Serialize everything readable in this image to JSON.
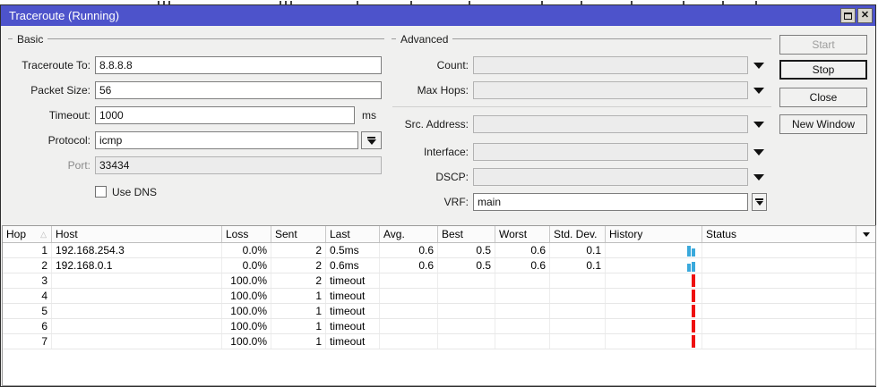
{
  "window": {
    "title": "Traceroute (Running)"
  },
  "basic": {
    "legend": "Basic",
    "traceroute_to": {
      "label": "Traceroute To:",
      "value": "8.8.8.8"
    },
    "packet_size": {
      "label": "Packet Size:",
      "value": "56"
    },
    "timeout": {
      "label": "Timeout:",
      "value": "1000",
      "suffix": "ms"
    },
    "protocol": {
      "label": "Protocol:",
      "value": "icmp"
    },
    "port": {
      "label": "Port:",
      "value": "33434"
    },
    "use_dns": {
      "label": "Use DNS",
      "checked": false
    }
  },
  "advanced": {
    "legend": "Advanced",
    "count": {
      "label": "Count:",
      "value": ""
    },
    "max_hops": {
      "label": "Max Hops:",
      "value": ""
    },
    "src_address": {
      "label": "Src. Address:",
      "value": ""
    },
    "interface": {
      "label": "Interface:",
      "value": ""
    },
    "dscp": {
      "label": "DSCP:",
      "value": ""
    },
    "vrf": {
      "label": "VRF:",
      "value": "main"
    }
  },
  "action_buttons": {
    "start": "Start",
    "stop": "Stop",
    "close": "Close",
    "new_window": "New Window"
  },
  "table": {
    "columns": [
      "Hop",
      "Host",
      "Loss",
      "Sent",
      "Last",
      "Avg.",
      "Best",
      "Worst",
      "Std. Dev.",
      "History",
      "Status"
    ],
    "rows": [
      {
        "hop": "1",
        "host": "192.168.254.3",
        "loss": "0.0%",
        "sent": "2",
        "last": "0.5ms",
        "avg": "0.6",
        "best": "0.5",
        "worst": "0.6",
        "std_dev": "0.1",
        "status": "",
        "history": {
          "color_ref": "history_blue",
          "bars": [
            12,
            9
          ]
        }
      },
      {
        "hop": "2",
        "host": "192.168.0.1",
        "loss": "0.0%",
        "sent": "2",
        "last": "0.6ms",
        "avg": "0.6",
        "best": "0.5",
        "worst": "0.6",
        "std_dev": "0.1",
        "status": "",
        "history": {
          "color_ref": "history_blue",
          "bars": [
            9,
            11
          ]
        }
      },
      {
        "hop": "3",
        "host": "",
        "loss": "100.0%",
        "sent": "2",
        "last": "timeout",
        "avg": "",
        "best": "",
        "worst": "",
        "std_dev": "",
        "status": "",
        "history": {
          "color_ref": "history_red",
          "bars": [
            14
          ]
        }
      },
      {
        "hop": "4",
        "host": "",
        "loss": "100.0%",
        "sent": "1",
        "last": "timeout",
        "avg": "",
        "best": "",
        "worst": "",
        "std_dev": "",
        "status": "",
        "history": {
          "color_ref": "history_red",
          "bars": [
            14
          ]
        }
      },
      {
        "hop": "5",
        "host": "",
        "loss": "100.0%",
        "sent": "1",
        "last": "timeout",
        "avg": "",
        "best": "",
        "worst": "",
        "std_dev": "",
        "status": "",
        "history": {
          "color_ref": "history_red",
          "bars": [
            14
          ]
        }
      },
      {
        "hop": "6",
        "host": "",
        "loss": "100.0%",
        "sent": "1",
        "last": "timeout",
        "avg": "",
        "best": "",
        "worst": "",
        "std_dev": "",
        "status": "",
        "history": {
          "color_ref": "history_red",
          "bars": [
            14
          ]
        }
      },
      {
        "hop": "7",
        "host": "",
        "loss": "100.0%",
        "sent": "1",
        "last": "timeout",
        "avg": "",
        "best": "",
        "worst": "",
        "std_dev": "",
        "status": "",
        "history": {
          "color_ref": "history_red",
          "bars": [
            14
          ]
        }
      }
    ]
  },
  "colors": {
    "titlebar": "#4d53cb",
    "history_blue": "#3aa9dc",
    "history_red": "#ee1010"
  }
}
